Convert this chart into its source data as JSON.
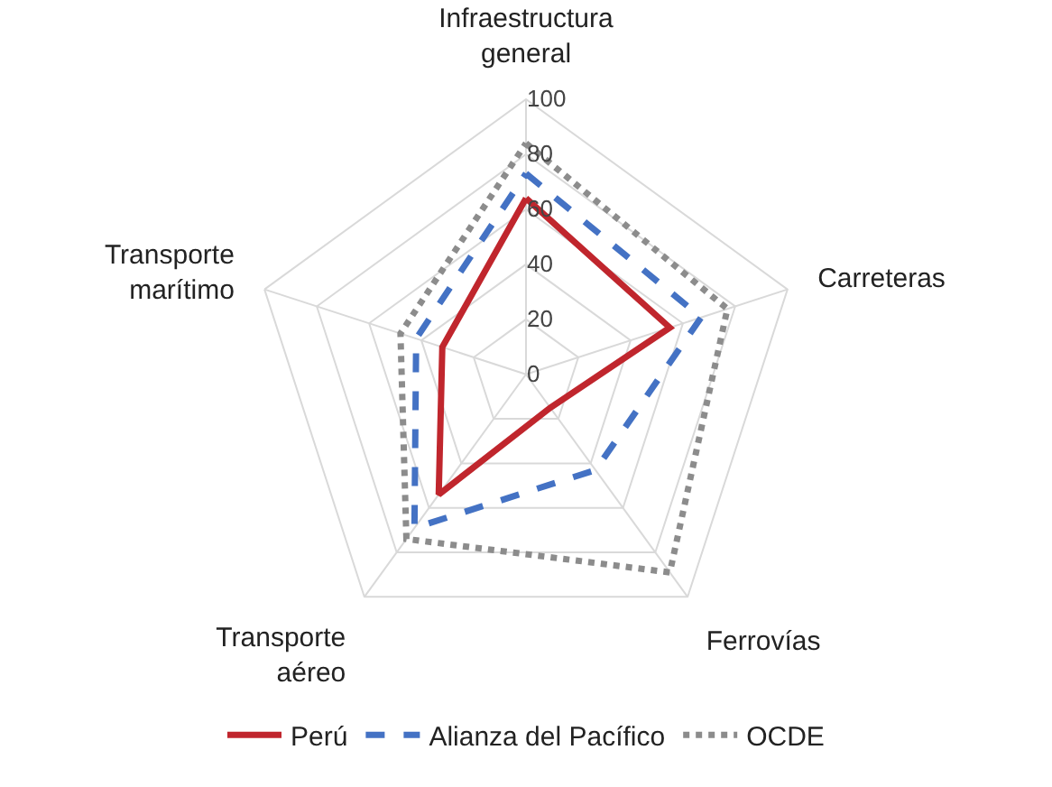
{
  "chart_data": {
    "type": "radar",
    "categories": [
      "Infraestructura\ngeneral",
      "Carreteras",
      "Ferrovías",
      "Transporte\naéreo",
      "Transporte\nmarítimo"
    ],
    "series": [
      {
        "name": "Perú",
        "color": "#c0262d",
        "line_style": "solid",
        "values": [
          64,
          55,
          15,
          54,
          32
        ]
      },
      {
        "name": "Alianza del Pacífico",
        "color": "#4472c4",
        "line_style": "dashed",
        "values": [
          73,
          67,
          43,
          69,
          42
        ]
      },
      {
        "name": "OCDE",
        "color": "#8c8c8c",
        "line_style": "dotted",
        "values": [
          84,
          77,
          89,
          74,
          48
        ]
      }
    ],
    "ylim": [
      0,
      100
    ],
    "yticks": [
      0,
      20,
      40,
      60,
      80,
      100
    ],
    "grid": true,
    "legend": "bottom",
    "marker": "none"
  }
}
